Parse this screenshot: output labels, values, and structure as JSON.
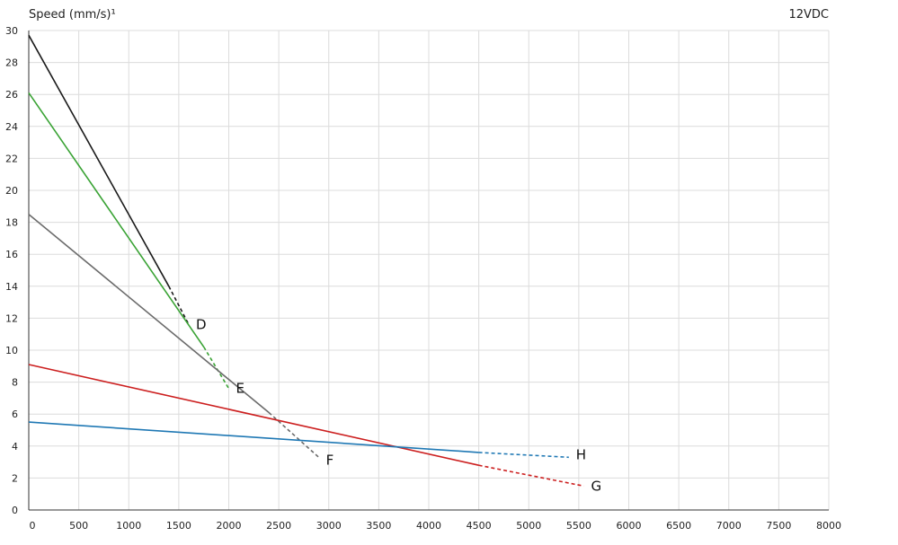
{
  "chart_data": {
    "type": "line",
    "title": "",
    "ylabel": "Speed (mm/s)¹",
    "voltage_label": "12VDC",
    "xlabel": "",
    "xlim": [
      0,
      8000
    ],
    "ylim": [
      0,
      30
    ],
    "x_ticks": [
      0,
      500,
      1000,
      1500,
      2000,
      2500,
      3000,
      3500,
      4000,
      4500,
      5000,
      5500,
      6000,
      6500,
      7000,
      7500,
      8000
    ],
    "x_tick_labels": [
      "0",
      "500",
      "1000",
      "1500",
      "2000",
      "2500",
      "3000",
      "3500",
      "4000",
      "4500",
      "5000",
      "5500",
      "6000",
      "6500",
      "7000",
      "7500",
      "8000"
    ],
    "y_ticks": [
      0,
      2,
      4,
      6,
      8,
      10,
      12,
      14,
      16,
      18,
      20,
      22,
      24,
      26,
      28,
      30
    ],
    "y_tick_labels": [
      "0",
      "2",
      "4",
      "6",
      "8",
      "10",
      "12",
      "14",
      "16",
      "18",
      "20",
      "22",
      "24",
      "26",
      "28",
      "30"
    ],
    "grid": true,
    "series": [
      {
        "name": "D",
        "color": "#1a1a1a",
        "solid": [
          [
            0,
            29.7
          ],
          [
            1400,
            14.0
          ]
        ],
        "dashed": [
          [
            1400,
            14.0
          ],
          [
            1600,
            11.6
          ]
        ]
      },
      {
        "name": "E",
        "color": "#3aa335",
        "solid": [
          [
            0,
            26.1
          ],
          [
            1750,
            10.2
          ]
        ],
        "dashed": [
          [
            1750,
            10.2
          ],
          [
            2000,
            7.6
          ]
        ]
      },
      {
        "name": "F",
        "color": "#6b6b6b",
        "solid": [
          [
            0,
            18.5
          ],
          [
            2400,
            6.1
          ]
        ],
        "dashed": [
          [
            2400,
            6.1
          ],
          [
            2900,
            3.3
          ]
        ]
      },
      {
        "name": "G",
        "color": "#cc1f1f",
        "solid": [
          [
            0,
            9.1
          ],
          [
            4500,
            2.8
          ]
        ],
        "dashed": [
          [
            4500,
            2.8
          ],
          [
            5550,
            1.5
          ]
        ]
      },
      {
        "name": "H",
        "color": "#1f78b4",
        "solid": [
          [
            0,
            5.5
          ],
          [
            4500,
            3.6
          ]
        ],
        "dashed": [
          [
            4500,
            3.6
          ],
          [
            5400,
            3.3
          ]
        ]
      }
    ]
  }
}
